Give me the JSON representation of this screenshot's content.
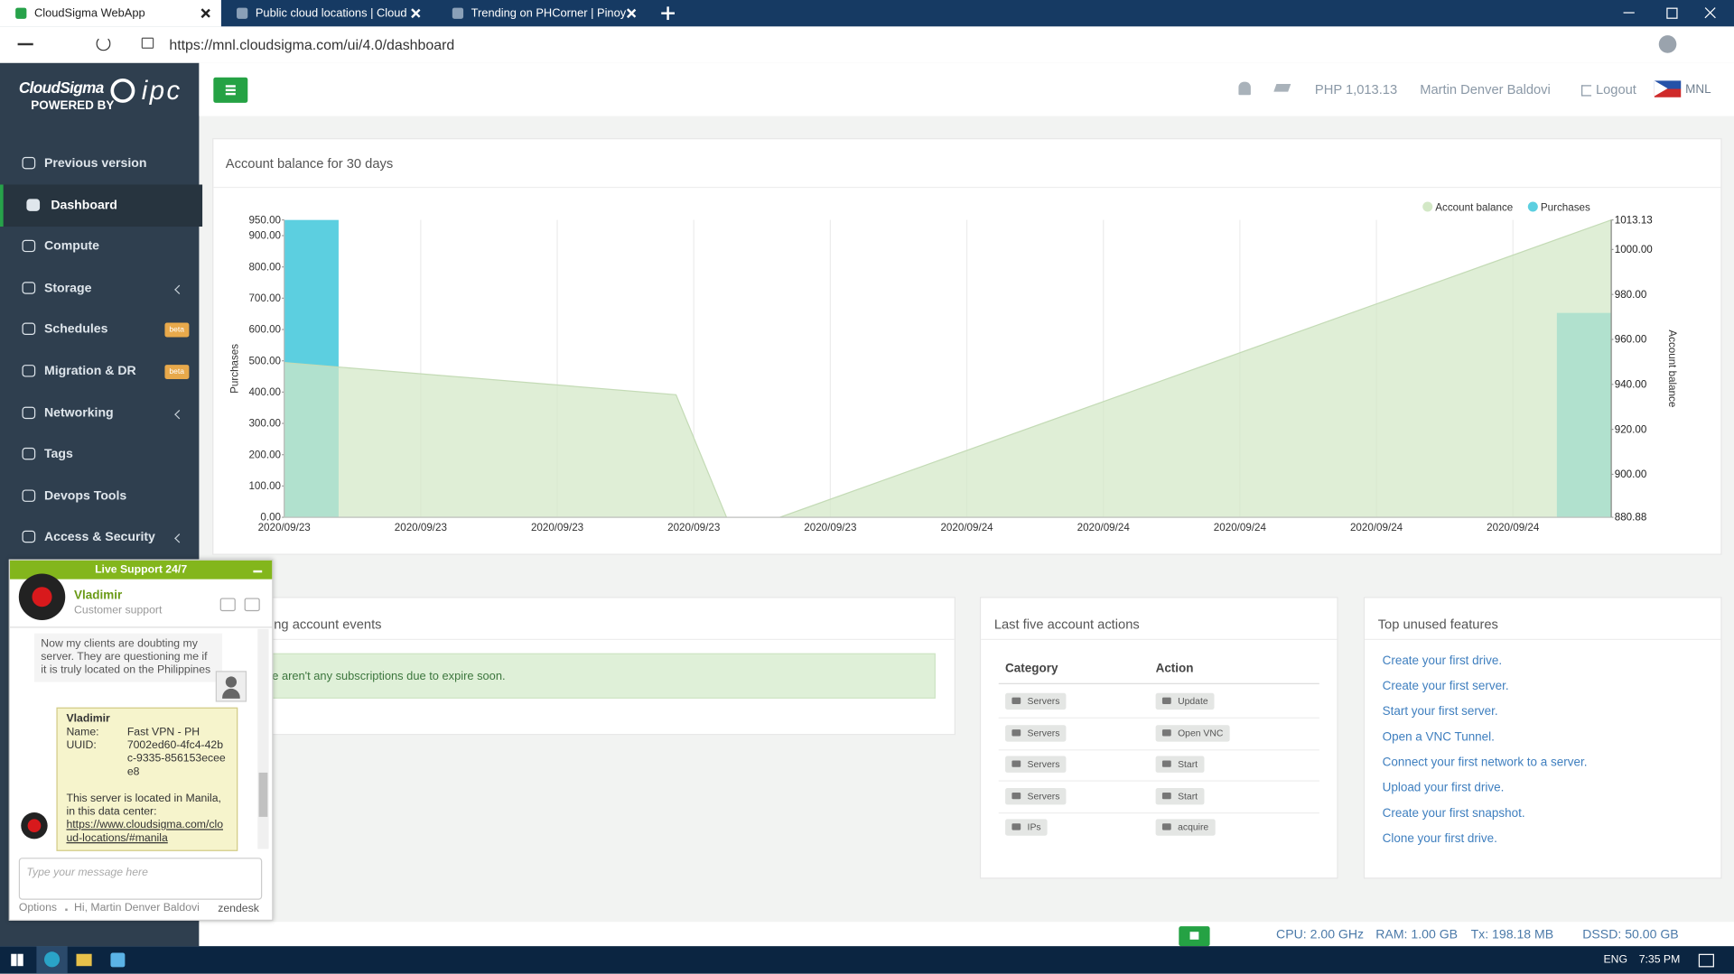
{
  "browser": {
    "tabs": [
      "CloudSigma WebApp",
      "Public cloud locations | Cloud Se",
      "Trending on PHCorner | Pinoy In"
    ],
    "url": "https://mnl.cloudsigma.com/ui/4.0/dashboard"
  },
  "sidebar": {
    "brand": "CloudSigma",
    "powered_by": "POWERED BY",
    "partner": "ipc",
    "items": [
      {
        "label": "Previous version"
      },
      {
        "label": "Dashboard",
        "active": true
      },
      {
        "label": "Compute"
      },
      {
        "label": "Storage",
        "submenu": true
      },
      {
        "label": "Schedules",
        "badge": "beta"
      },
      {
        "label": "Migration & DR",
        "badge": "beta"
      },
      {
        "label": "Networking",
        "submenu": true
      },
      {
        "label": "Tags"
      },
      {
        "label": "Devops Tools"
      },
      {
        "label": "Access & Security",
        "submenu": true
      }
    ]
  },
  "header": {
    "balance": "PHP 1,013.13",
    "user": "Martin Denver Baldovi",
    "logout": "Logout",
    "location": "MNL"
  },
  "chart_data": {
    "type": "combo",
    "title": "Account balance for 30 days",
    "ylabel": "Purchases",
    "y2label": "Account balance",
    "legend": "top-right",
    "grid": "x",
    "xlim": [
      0,
      9.72
    ],
    "xticks": [
      {
        "value": 0,
        "label": "2020/09/23"
      },
      {
        "value": 1,
        "label": "2020/09/23"
      },
      {
        "value": 2,
        "label": "2020/09/23"
      },
      {
        "value": 3,
        "label": "2020/09/23"
      },
      {
        "value": 4,
        "label": "2020/09/23"
      },
      {
        "value": 5,
        "label": "2020/09/24"
      },
      {
        "value": 6,
        "label": "2020/09/24"
      },
      {
        "value": 7,
        "label": "2020/09/24"
      },
      {
        "value": 8,
        "label": "2020/09/24"
      },
      {
        "value": 9,
        "label": "2020/09/24"
      }
    ],
    "ylim": [
      0,
      950
    ],
    "yticks": [
      {
        "value": 0,
        "label": "0.00"
      },
      {
        "value": 100,
        "label": "100.00"
      },
      {
        "value": 200,
        "label": "200.00"
      },
      {
        "value": 300,
        "label": "300.00"
      },
      {
        "value": 400,
        "label": "400.00"
      },
      {
        "value": 500,
        "label": "500.00"
      },
      {
        "value": 600,
        "label": "600.00"
      },
      {
        "value": 700,
        "label": "700.00"
      },
      {
        "value": 800,
        "label": "800.00"
      },
      {
        "value": 900,
        "label": "900.00"
      },
      {
        "value": 950,
        "label": "950.00"
      }
    ],
    "y2lim": [
      880.88,
      1013.13
    ],
    "y2ticks": [
      880.88,
      {
        "value": 900,
        "label": "900.00"
      },
      {
        "value": 920,
        "label": "920.00"
      },
      {
        "value": 940,
        "label": "940.00"
      },
      {
        "value": 960,
        "label": "960.00"
      },
      {
        "value": 980,
        "label": "980.00"
      },
      {
        "value": 1000,
        "label": "1000.00"
      },
      1013.13
    ],
    "series": [
      {
        "name": "Account balance",
        "type": "area",
        "axis": "y2",
        "color": "#d3e8c6",
        "x": [
          0,
          2.87,
          3.24,
          3.63,
          9.72
        ],
        "values": [
          949.7,
          935.4,
          880.88,
          880.88,
          1013.13
        ]
      },
      {
        "name": "Purchases",
        "type": "bar",
        "color": "#5ccfe0",
        "x": [
          0.2,
          9.52
        ],
        "values": [
          950,
          653
        ]
      }
    ]
  },
  "events": {
    "title": "ing account events",
    "message": "e aren't any subscriptions due to expire soon."
  },
  "actions": {
    "title": "Last five account actions",
    "columns": [
      "Category",
      "Action"
    ],
    "rows": [
      [
        "Servers",
        "Update"
      ],
      [
        "Servers",
        "Open VNC"
      ],
      [
        "Servers",
        "Start"
      ],
      [
        "Servers",
        "Start"
      ],
      [
        "IPs",
        "acquire"
      ]
    ]
  },
  "unused": {
    "title": "Top unused features",
    "links": [
      "Create your first drive.",
      "Create your first server.",
      "Start your first server.",
      "Open a VNC Tunnel.",
      "Connect your first network to a server.",
      "Upload your first drive.",
      "Create your first snapshot.",
      "Clone your first drive."
    ]
  },
  "chat": {
    "title": "Live Support 24/7",
    "agent": "Vladimir",
    "role": "Customer support",
    "messages": [
      {
        "text": "Now my clients are doubting my server. They are questioning me if it is truly located on the Philippines"
      },
      {
        "author": "Vladimir",
        "fields": [
          {
            "label": "Name:",
            "value": "Fast VPN - PH"
          },
          {
            "label": "UUID:",
            "value": "7002ed60-4fc4-42bc-9335-856153eceee8"
          }
        ],
        "text": "This server is located in Manila, in this data center:",
        "link": "https://www.cloudsigma.com/cloud-locations/#manila"
      }
    ],
    "placeholder": "Type your message here",
    "footer": {
      "options": "Options",
      "greeting": "Hi, Martin Denver Baldovi",
      "brand": "zendesk"
    }
  },
  "status": {
    "cpu": "CPU: 2.00 GHz",
    "ram": "RAM: 1.00 GB",
    "tx": "Tx: 198.18 MB",
    "dssd": "DSSD: 50.00 GB"
  },
  "taskbar": {
    "language": "ENG",
    "time": "7:35 PM"
  }
}
